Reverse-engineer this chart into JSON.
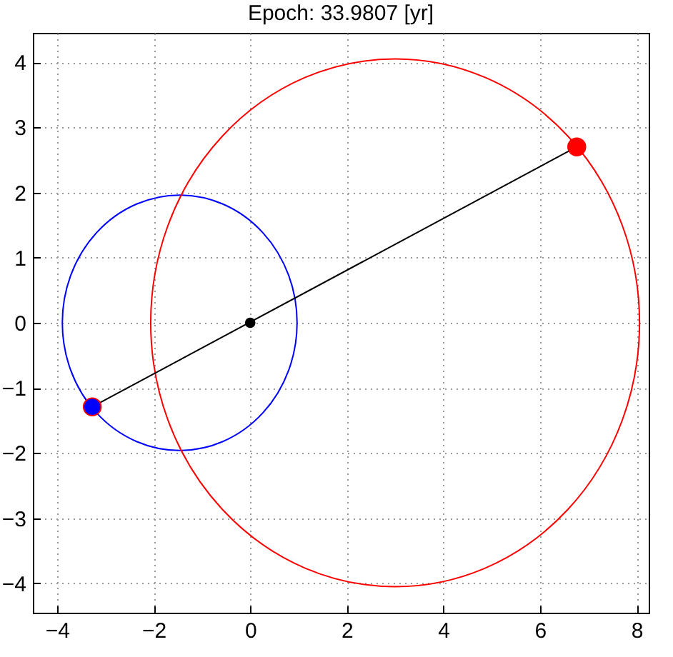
{
  "chart_data": {
    "type": "line",
    "title": "Epoch: 33.9807 [yr]",
    "xlim": [
      -4.5,
      8.25
    ],
    "xticks": [
      -4,
      -2,
      0,
      2,
      4,
      6,
      8
    ],
    "ylim": [
      -4.45,
      4.45
    ],
    "yticks": [
      -4,
      -3,
      -2,
      -1,
      0,
      1,
      2,
      3,
      4
    ],
    "grid": true,
    "line_style": "solid",
    "series": [
      {
        "color": "#000000",
        "x": [
          -3.27,
          6.76
        ],
        "values": [
          -1.29,
          2.7
        ]
      },
      {
        "type": "scatter",
        "marker": "circle",
        "color": "#0000ff",
        "x": [
          -3.27
        ],
        "values": [
          -1.29
        ]
      },
      {
        "type": "scatter",
        "marker": "circle",
        "color": "#ff0000",
        "x": [
          6.76
        ],
        "values": [
          2.7
        ]
      },
      {
        "type": "scatter",
        "marker": "circle",
        "color": "#000000",
        "x": [
          0
        ],
        "values": [
          0
        ]
      }
    ]
  }
}
